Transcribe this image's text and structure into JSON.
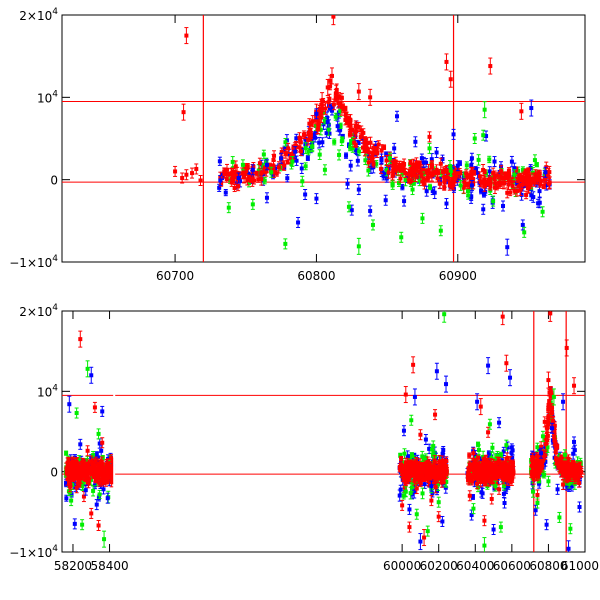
{
  "chart_data": [
    {
      "type": "scatter",
      "panel": "top",
      "title": "",
      "xlabel": "",
      "ylabel": "",
      "xlim": [
        60620,
        60990
      ],
      "ylim": [
        -10000,
        20000
      ],
      "x_ticks": [
        {
          "value": 60700,
          "label": "60700"
        },
        {
          "value": 60800,
          "label": "60800"
        },
        {
          "value": 60900,
          "label": "60900"
        }
      ],
      "y_ticks": [
        {
          "value": 20000,
          "mantissa": "2×10",
          "exp": "4"
        },
        {
          "value": 10000,
          "mantissa": "10",
          "exp": "4"
        },
        {
          "value": 0,
          "mantissa": "0",
          "exp": ""
        },
        {
          "value": -10000,
          "mantissa": "−1×10",
          "exp": "4"
        }
      ],
      "reference_lines_y": [
        9500,
        -300
      ],
      "vertical_marks_x": [
        60720,
        60897
      ],
      "series": [
        {
          "name": "red",
          "color": "#ff0000",
          "points": [
            [
              60700,
              1000
            ],
            [
              60705,
              200
            ],
            [
              60708,
              600
            ],
            [
              60712,
              800
            ],
            [
              60715,
              1300
            ],
            [
              60718,
              -100
            ],
            [
              60732,
              300
            ],
            [
              60740,
              800
            ],
            [
              60750,
              1200
            ],
            [
              60760,
              2000
            ],
            [
              60770,
              2900
            ],
            [
              60780,
              3800
            ],
            [
              60788,
              5100
            ],
            [
              60795,
              6800
            ],
            [
              60800,
              8200
            ],
            [
              60804,
              9600
            ],
            [
              60808,
              11200
            ],
            [
              60811,
              12600
            ],
            [
              60814,
              10500
            ],
            [
              60818,
              8800
            ],
            [
              60823,
              7300
            ],
            [
              60828,
              5900
            ],
            [
              60835,
              4300
            ],
            [
              60843,
              3300
            ],
            [
              60852,
              2400
            ],
            [
              60862,
              1900
            ],
            [
              60872,
              1500
            ],
            [
              60885,
              1200
            ],
            [
              60898,
              1000
            ],
            [
              60910,
              900
            ],
            [
              60925,
              800
            ],
            [
              60940,
              700
            ],
            [
              60955,
              600
            ],
            [
              60963,
              500
            ],
            [
              60708,
              17500
            ],
            [
              60706,
              8200
            ],
            [
              60812,
              19800
            ],
            [
              60838,
              10000
            ],
            [
              60892,
              14300
            ],
            [
              60895,
              12200
            ],
            [
              60923,
              13800
            ],
            [
              60945,
              8300
            ],
            [
              60880,
              5200
            ],
            [
              60830,
              10700
            ],
            [
              60918,
              -400
            ],
            [
              60935,
              -1600
            ]
          ]
        },
        {
          "name": "blue",
          "color": "#0000ff",
          "points": [
            [
              60732,
              -100
            ],
            [
              60745,
              200
            ],
            [
              60755,
              1200
            ],
            [
              60765,
              1800
            ],
            [
              60775,
              2600
            ],
            [
              60785,
              3400
            ],
            [
              60792,
              -1800
            ],
            [
              60800,
              8000
            ],
            [
              60808,
              7000
            ],
            [
              60815,
              6500
            ],
            [
              60822,
              -500
            ],
            [
              60830,
              -1200
            ],
            [
              60838,
              -3800
            ],
            [
              60846,
              2500
            ],
            [
              60855,
              3800
            ],
            [
              60862,
              -2600
            ],
            [
              60870,
              4600
            ],
            [
              60878,
              -1400
            ],
            [
              60885,
              3300
            ],
            [
              60892,
              -2900
            ],
            [
              60900,
              1700
            ],
            [
              60910,
              -700
            ],
            [
              60918,
              -3600
            ],
            [
              60926,
              2200
            ],
            [
              60932,
              -3200
            ],
            [
              60940,
              1400
            ],
            [
              60946,
              -5500
            ],
            [
              60952,
              -1900
            ],
            [
              60958,
              -2800
            ],
            [
              60962,
              900
            ],
            [
              60897,
              5500
            ],
            [
              60857,
              7700
            ],
            [
              60920,
              5300
            ],
            [
              60952,
              8700
            ],
            [
              60787,
              -5200
            ],
            [
              60825,
              -3700
            ],
            [
              60910,
              2600
            ],
            [
              60876,
              2100
            ],
            [
              60849,
              -2500
            ],
            [
              60935,
              -8200
            ],
            [
              60765,
              -2200
            ],
            [
              60800,
              -2300
            ]
          ]
        },
        {
          "name": "green",
          "color": "#00ee00",
          "points": [
            [
              60738,
              -3400
            ],
            [
              60748,
              1800
            ],
            [
              60755,
              -3000
            ],
            [
              60768,
              900
            ],
            [
              60778,
              -7800
            ],
            [
              60783,
              2200
            ],
            [
              60790,
              -200
            ],
            [
              60797,
              4000
            ],
            [
              60806,
              1200
            ],
            [
              60816,
              3000
            ],
            [
              60823,
              -3300
            ],
            [
              60830,
              -8100
            ],
            [
              60840,
              -5500
            ],
            [
              60852,
              2600
            ],
            [
              60860,
              -7000
            ],
            [
              60868,
              -1200
            ],
            [
              60875,
              -4700
            ],
            [
              60880,
              3800
            ],
            [
              60888,
              -6200
            ],
            [
              60895,
              1100
            ],
            [
              60902,
              -700
            ],
            [
              60912,
              5000
            ],
            [
              60919,
              8500
            ],
            [
              60925,
              -2600
            ],
            [
              60940,
              600
            ],
            [
              60947,
              -6400
            ],
            [
              60960,
              -3900
            ],
            [
              60918,
              5400
            ]
          ]
        }
      ]
    },
    {
      "type": "scatter",
      "panel": "bottom",
      "title": "",
      "xlabel": "",
      "ylabel": "",
      "xlim": [
        58140,
        61000
      ],
      "ylim": [
        -10000,
        20000
      ],
      "x_ticks": [
        {
          "value": 58200,
          "label": "58200"
        },
        {
          "value": 58400,
          "label": "58400"
        },
        {
          "value": 60000,
          "label": "60000"
        },
        {
          "value": 60200,
          "label": "60200"
        },
        {
          "value": 60400,
          "label": "60400"
        },
        {
          "value": 60600,
          "label": "60600"
        },
        {
          "value": 60800,
          "label": "60800"
        },
        {
          "value": 61000,
          "label": "61000"
        }
      ],
      "y_ticks": [
        {
          "value": 20000,
          "mantissa": "2×10",
          "exp": "4"
        },
        {
          "value": 10000,
          "mantissa": "10",
          "exp": "4"
        },
        {
          "value": 0,
          "mantissa": "0",
          "exp": ""
        },
        {
          "value": -10000,
          "mantissa": "−1×10",
          "exp": "4"
        }
      ],
      "reference_lines_y": [
        9500,
        -300
      ],
      "vertical_marks_x": [
        60720,
        60897
      ],
      "observing_windows": [
        [
          58160,
          58420
        ],
        [
          59985,
          60245
        ],
        [
          60355,
          60610
        ],
        [
          60705,
          60980
        ]
      ],
      "series": [
        {
          "name": "red",
          "color": "#ff0000",
          "points": [
            [
              58180,
              -800
            ],
            [
              58200,
              1200
            ],
            [
              58220,
              -2000
            ],
            [
              58240,
              16500
            ],
            [
              58260,
              -3100
            ],
            [
              58280,
              2600
            ],
            [
              58300,
              -5200
            ],
            [
              58320,
              8000
            ],
            [
              58340,
              -6700
            ],
            [
              58360,
              3600
            ],
            [
              58380,
              -1200
            ],
            [
              58400,
              600
            ],
            [
              60000,
              -4200
            ],
            [
              60020,
              9600
            ],
            [
              60040,
              -6900
            ],
            [
              60060,
              13300
            ],
            [
              60080,
              -2100
            ],
            [
              60100,
              4600
            ],
            [
              60120,
              -8200
            ],
            [
              60140,
              1200
            ],
            [
              60160,
              -3600
            ],
            [
              60180,
              7100
            ],
            [
              60200,
              -5600
            ],
            [
              60220,
              800
            ],
            [
              60240,
              -200
            ],
            [
              60370,
              -3000
            ],
            [
              60390,
              2300
            ],
            [
              60410,
              -1500
            ],
            [
              60430,
              8100
            ],
            [
              60450,
              -6100
            ],
            [
              60470,
              4900
            ],
            [
              60490,
              -3400
            ],
            [
              60510,
              700
            ],
            [
              60530,
              -2200
            ],
            [
              60550,
              19300
            ],
            [
              60570,
              13500
            ],
            [
              60590,
              -1100
            ],
            [
              60720,
              1200
            ],
            [
              60740,
              -2900
            ],
            [
              60760,
              3100
            ],
            [
              60780,
              6200
            ],
            [
              60800,
              11400
            ],
            [
              60810,
              19700
            ],
            [
              60820,
              7300
            ],
            [
              60840,
              2500
            ],
            [
              60860,
              600
            ],
            [
              60880,
              -1600
            ],
            [
              60900,
              15400
            ],
            [
              60920,
              -600
            ],
            [
              60940,
              10700
            ],
            [
              60960,
              400
            ]
          ]
        },
        {
          "name": "blue",
          "color": "#0000ff",
          "points": [
            [
              58180,
              8400
            ],
            [
              58210,
              -6500
            ],
            [
              58240,
              3400
            ],
            [
              58270,
              -2300
            ],
            [
              58300,
              12000
            ],
            [
              58330,
              -4100
            ],
            [
              58360,
              7500
            ],
            [
              58390,
              -3300
            ],
            [
              60010,
              5100
            ],
            [
              60040,
              -4700
            ],
            [
              60070,
              9300
            ],
            [
              60100,
              -8700
            ],
            [
              60130,
              4000
            ],
            [
              60160,
              -1800
            ],
            [
              60190,
              12500
            ],
            [
              60220,
              -6200
            ],
            [
              60240,
              10900
            ],
            [
              60380,
              -5400
            ],
            [
              60410,
              8700
            ],
            [
              60440,
              -2700
            ],
            [
              60470,
              13200
            ],
            [
              60500,
              -7200
            ],
            [
              60530,
              6100
            ],
            [
              60560,
              -3900
            ],
            [
              60590,
              11700
            ],
            [
              60730,
              -4800
            ],
            [
              60760,
              2300
            ],
            [
              60790,
              -6600
            ],
            [
              60820,
              5400
            ],
            [
              60850,
              -2200
            ],
            [
              60880,
              8700
            ],
            [
              60910,
              -9600
            ],
            [
              60940,
              3700
            ],
            [
              60970,
              -4400
            ]
          ]
        },
        {
          "name": "green",
          "color": "#00ee00",
          "points": [
            [
              58190,
              -3600
            ],
            [
              58220,
              7300
            ],
            [
              58250,
              -6600
            ],
            [
              58280,
              12800
            ],
            [
              58310,
              -2400
            ],
            [
              58340,
              4700
            ],
            [
              58370,
              -8400
            ],
            [
              60020,
              -2500
            ],
            [
              60050,
              6400
            ],
            [
              60080,
              -5300
            ],
            [
              60110,
              1900
            ],
            [
              60140,
              -7400
            ],
            [
              60170,
              3200
            ],
            [
              60200,
              -3800
            ],
            [
              60230,
              19600
            ],
            [
              60390,
              -4600
            ],
            [
              60420,
              2700
            ],
            [
              60450,
              -9200
            ],
            [
              60480,
              5900
            ],
            [
              60510,
              -1800
            ],
            [
              60540,
              -6900
            ],
            [
              60570,
              3300
            ],
            [
              60740,
              -3900
            ],
            [
              60770,
              4400
            ],
            [
              60800,
              -1200
            ],
            [
              60830,
              9300
            ],
            [
              60860,
              -5700
            ],
            [
              60890,
              2100
            ],
            [
              60920,
              -7100
            ]
          ]
        }
      ]
    }
  ]
}
